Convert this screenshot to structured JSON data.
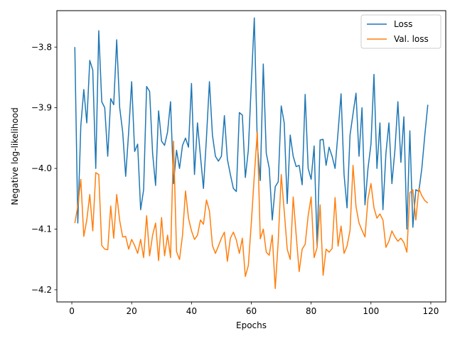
{
  "chart_data": {
    "type": "line",
    "xlabel": "Epochs",
    "ylabel": "Negative log-likelihood",
    "xlim": [
      -5,
      125
    ],
    "ylim": [
      -4.22,
      -3.74
    ],
    "xticks": [
      0,
      20,
      40,
      60,
      80,
      100,
      120
    ],
    "xtick_labels": [
      "0",
      "20",
      "40",
      "60",
      "80",
      "100",
      "120"
    ],
    "yticks": [
      -4.2,
      -4.1,
      -4.0,
      -3.9,
      -3.8
    ],
    "ytick_labels": [
      "−4.2",
      "−4.1",
      "−4.0",
      "−3.9",
      "−3.8"
    ],
    "grid": false,
    "legend_position": "upper right",
    "x": [
      1,
      2,
      3,
      4,
      5,
      6,
      7,
      8,
      9,
      10,
      11,
      12,
      13,
      14,
      15,
      16,
      17,
      18,
      19,
      20,
      21,
      22,
      23,
      24,
      25,
      26,
      27,
      28,
      29,
      30,
      31,
      32,
      33,
      34,
      35,
      36,
      37,
      38,
      39,
      40,
      41,
      42,
      43,
      44,
      45,
      46,
      47,
      48,
      49,
      50,
      51,
      52,
      53,
      54,
      55,
      56,
      57,
      58,
      59,
      60,
      61,
      62,
      63,
      64,
      65,
      66,
      67,
      68,
      69,
      70,
      71,
      72,
      73,
      74,
      75,
      76,
      77,
      78,
      79,
      80,
      81,
      82,
      83,
      84,
      85,
      86,
      87,
      88,
      89,
      90,
      91,
      92,
      93,
      94,
      95,
      96,
      97,
      98,
      99,
      100,
      101,
      102,
      103,
      104,
      105,
      106,
      107,
      108,
      109,
      110,
      111,
      112,
      113,
      114,
      115,
      116,
      117,
      118,
      119
    ],
    "series": [
      {
        "name": "Loss",
        "color": "#1f77b4",
        "values": [
          -3.8,
          -4.09,
          -3.93,
          -3.87,
          -3.925,
          -3.822,
          -3.838,
          -4.0,
          -3.773,
          -3.89,
          -3.9,
          -3.98,
          -3.885,
          -3.895,
          -3.788,
          -3.9,
          -3.94,
          -4.013,
          -3.94,
          -3.857,
          -3.972,
          -3.96,
          -4.068,
          -4.035,
          -3.865,
          -3.873,
          -3.975,
          -4.028,
          -3.905,
          -3.955,
          -3.962,
          -3.94,
          -3.89,
          -4.025,
          -3.97,
          -4.0,
          -3.962,
          -3.95,
          -3.965,
          -3.86,
          -4.01,
          -3.925,
          -3.98,
          -4.033,
          -3.95,
          -3.857,
          -3.945,
          -3.98,
          -3.988,
          -3.98,
          -3.913,
          -3.985,
          -4.01,
          -4.033,
          -4.038,
          -3.908,
          -3.912,
          -4.015,
          -3.97,
          -3.86,
          -3.752,
          -3.96,
          -4.02,
          -3.828,
          -3.975,
          -4.0,
          -4.085,
          -4.03,
          -4.022,
          -3.897,
          -3.925,
          -4.058,
          -3.945,
          -3.98,
          -3.997,
          -3.995,
          -4.027,
          -3.878,
          -4.0,
          -4.018,
          -3.963,
          -4.128,
          -3.953,
          -3.952,
          -3.995,
          -3.965,
          -3.98,
          -4.0,
          -3.94,
          -3.877,
          -4.01,
          -4.065,
          -3.945,
          -3.91,
          -3.876,
          -3.98,
          -3.9,
          -4.06,
          -4.0,
          -3.96,
          -3.845,
          -4.0,
          -3.925,
          -4.068,
          -3.975,
          -3.925,
          -4.025,
          -3.97,
          -3.89,
          -3.99,
          -3.915,
          -4.1,
          -3.938,
          -4.097,
          -4.035,
          -4.038,
          -4.0,
          -3.945,
          -3.895
        ]
      },
      {
        "name": "Val. loss",
        "color": "#ff7f0e",
        "values": [
          -4.09,
          -4.062,
          -4.018,
          -4.112,
          -4.085,
          -4.043,
          -4.103,
          -4.007,
          -4.01,
          -4.127,
          -4.133,
          -4.134,
          -4.062,
          -4.115,
          -4.043,
          -4.086,
          -4.113,
          -4.112,
          -4.133,
          -4.117,
          -4.127,
          -4.14,
          -4.117,
          -4.147,
          -4.078,
          -4.144,
          -4.11,
          -4.09,
          -4.152,
          -4.081,
          -4.144,
          -4.11,
          -4.147,
          -3.955,
          -4.137,
          -4.15,
          -4.11,
          -4.037,
          -4.082,
          -4.103,
          -4.117,
          -4.11,
          -4.085,
          -4.092,
          -4.052,
          -4.07,
          -4.127,
          -4.14,
          -4.128,
          -4.115,
          -4.105,
          -4.153,
          -4.115,
          -4.105,
          -4.118,
          -4.14,
          -4.115,
          -4.178,
          -4.16,
          -4.09,
          -4.012,
          -3.94,
          -4.116,
          -4.1,
          -4.138,
          -4.143,
          -4.11,
          -4.198,
          -4.12,
          -4.01,
          -4.07,
          -4.133,
          -4.15,
          -4.047,
          -4.11,
          -4.17,
          -4.133,
          -4.125,
          -4.078,
          -4.047,
          -4.147,
          -4.13,
          -4.06,
          -4.176,
          -4.133,
          -4.138,
          -4.132,
          -4.048,
          -4.128,
          -4.095,
          -4.14,
          -4.128,
          -4.102,
          -3.995,
          -4.063,
          -4.09,
          -4.102,
          -4.113,
          -4.05,
          -4.025,
          -4.065,
          -4.082,
          -4.075,
          -4.085,
          -4.13,
          -4.12,
          -4.103,
          -4.113,
          -4.12,
          -4.115,
          -4.122,
          -4.138,
          -4.04,
          -4.035,
          -4.085,
          -4.033,
          -4.045,
          -4.053,
          -4.057
        ]
      }
    ]
  }
}
